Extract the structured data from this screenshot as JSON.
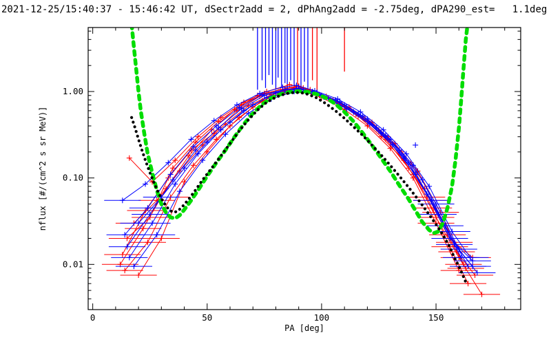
{
  "title": "2021-12-25/15:40:37 - 15:46:42 UT, dSectr2add = 2, dPhAng2add = -2.75deg, dPA290_est=   1.1deg",
  "chart_data": {
    "type": "line",
    "xlabel": "PA [deg]",
    "ylabel": "nflux [#/(cm^2 s sr MeV)]",
    "xlim": [
      -2,
      187
    ],
    "ylim": [
      0.003,
      5.5
    ],
    "ylog": true,
    "grid": false,
    "x_ticks": [
      0,
      50,
      100,
      150
    ],
    "x_tick_labels": [
      "0",
      "50",
      "100",
      "150"
    ],
    "y_ticks": [
      1.0,
      0.1,
      0.01
    ],
    "y_tick_labels": [
      "1.00",
      "0.10",
      "0.01"
    ],
    "colors": {
      "red": "#ff0000",
      "blue": "#0000ff",
      "green": "#00dd00",
      "black": "#000000",
      "frame": "#000000",
      "background": "#ffffff"
    },
    "fit_curves": [
      {
        "name": "model-fit-green-dashed",
        "color": "green",
        "style": "dashed",
        "pa": [
          17,
          18,
          19,
          20,
          21,
          22.5,
          24,
          26,
          28,
          30,
          32,
          34,
          36,
          38,
          40,
          43,
          46,
          50,
          54,
          58,
          62,
          66,
          70,
          74,
          78,
          82,
          86,
          90,
          94,
          98,
          102,
          106,
          110,
          114,
          118,
          122,
          126,
          130,
          134,
          138,
          141,
          144,
          147,
          149,
          151,
          153,
          155,
          157,
          158.5,
          160,
          161,
          162,
          163,
          163.8
        ],
        "flux": [
          6,
          3.2,
          1.8,
          1.0,
          0.6,
          0.33,
          0.19,
          0.115,
          0.072,
          0.05,
          0.04,
          0.035,
          0.034,
          0.037,
          0.043,
          0.055,
          0.072,
          0.105,
          0.15,
          0.21,
          0.3,
          0.42,
          0.56,
          0.71,
          0.84,
          0.93,
          0.99,
          1.01,
          0.99,
          0.93,
          0.84,
          0.72,
          0.58,
          0.45,
          0.33,
          0.24,
          0.17,
          0.12,
          0.082,
          0.057,
          0.042,
          0.031,
          0.025,
          0.023,
          0.024,
          0.03,
          0.045,
          0.08,
          0.16,
          0.38,
          0.8,
          1.8,
          4,
          6
        ]
      },
      {
        "name": "average-black-dotted",
        "color": "black",
        "style": "dotted",
        "pa": [
          17,
          18.5,
          20,
          21.5,
          23,
          25,
          27,
          29,
          31,
          33,
          35,
          37,
          39,
          42,
          45,
          48,
          52,
          56,
          60,
          64,
          68,
          72,
          76,
          80,
          84,
          88,
          91,
          94,
          98,
          102,
          106,
          110,
          114,
          118,
          122,
          126,
          130,
          134,
          138,
          142,
          146,
          150,
          153,
          156,
          158,
          160,
          162,
          163.5
        ],
        "flux": [
          0.5,
          0.38,
          0.28,
          0.21,
          0.16,
          0.115,
          0.085,
          0.065,
          0.052,
          0.044,
          0.04,
          0.041,
          0.046,
          0.057,
          0.073,
          0.095,
          0.13,
          0.18,
          0.25,
          0.35,
          0.47,
          0.61,
          0.75,
          0.86,
          0.94,
          0.975,
          0.97,
          0.93,
          0.84,
          0.72,
          0.6,
          0.49,
          0.39,
          0.31,
          0.24,
          0.185,
          0.14,
          0.105,
          0.078,
          0.057,
          0.041,
          0.029,
          0.022,
          0.016,
          0.012,
          0.0095,
          0.0072,
          0.0058
        ]
      }
    ],
    "series": [
      {
        "name": "red-1",
        "color": "red",
        "pa": [
          13,
          23,
          33,
          43,
          53,
          63,
          73,
          83,
          91,
          99,
          109,
          119,
          129,
          139,
          149,
          159,
          167
        ],
        "flux": [
          0.013,
          0.042,
          0.1,
          0.21,
          0.33,
          0.6,
          0.88,
          1.02,
          1.08,
          0.92,
          0.7,
          0.48,
          0.3,
          0.15,
          0.045,
          0.014,
          0.0075
        ]
      },
      {
        "name": "red-2",
        "color": "red",
        "pa": [
          15,
          25,
          35,
          45,
          55,
          65,
          75,
          85,
          90,
          95,
          105,
          115,
          125,
          135,
          145,
          155,
          163
        ],
        "flux": [
          0.02,
          0.035,
          0.13,
          0.26,
          0.45,
          0.7,
          0.95,
          1.1,
          1.15,
          1.05,
          0.8,
          0.55,
          0.35,
          0.2,
          0.075,
          0.022,
          0.009
        ]
      },
      {
        "name": "red-3",
        "color": "red",
        "pa": [
          14,
          24,
          34,
          44,
          54,
          64,
          74,
          84,
          92,
          100,
          110,
          120,
          130,
          140,
          150,
          160
        ],
        "flux": [
          0.0085,
          0.018,
          0.06,
          0.14,
          0.28,
          0.5,
          0.78,
          0.98,
          1.0,
          0.85,
          0.62,
          0.4,
          0.22,
          0.1,
          0.03,
          0.0085
        ]
      },
      {
        "name": "red-4",
        "color": "red",
        "pa": [
          16,
          26,
          36,
          46,
          56,
          66,
          76,
          86,
          92,
          98,
          108,
          118,
          128,
          138,
          148,
          158,
          166
        ],
        "flux": [
          0.17,
          0.09,
          0.16,
          0.3,
          0.5,
          0.75,
          1.0,
          1.2,
          1.1,
          0.95,
          0.72,
          0.5,
          0.28,
          0.13,
          0.055,
          0.018,
          0.012
        ]
      },
      {
        "name": "red-5",
        "color": "red",
        "pa": [
          12,
          22,
          32,
          42,
          52,
          62,
          72,
          82,
          88,
          96,
          106,
          116,
          126,
          136,
          146,
          156,
          164
        ],
        "flux": [
          0.01,
          0.026,
          0.075,
          0.18,
          0.36,
          0.62,
          0.9,
          1.05,
          1.12,
          0.98,
          0.78,
          0.52,
          0.3,
          0.16,
          0.06,
          0.016,
          0.006
        ]
      },
      {
        "name": "red-6",
        "color": "red",
        "pa": [
          18,
          28,
          38,
          48,
          58,
          68,
          78,
          88,
          94,
          102,
          112,
          122,
          132,
          142,
          152,
          162
        ],
        "flux": [
          0.03,
          0.055,
          0.12,
          0.24,
          0.42,
          0.68,
          0.92,
          1.08,
          1.02,
          0.88,
          0.66,
          0.44,
          0.25,
          0.12,
          0.04,
          0.01
        ]
      },
      {
        "name": "red-7",
        "color": "red",
        "pa": [
          20,
          30,
          40,
          50,
          60,
          70,
          80,
          90,
          100,
          110,
          120,
          130,
          140,
          150,
          160,
          170
        ],
        "flux": [
          0.0075,
          0.02,
          0.09,
          0.2,
          0.4,
          0.66,
          0.95,
          1.15,
          0.9,
          0.68,
          0.45,
          0.26,
          0.11,
          0.035,
          0.012,
          0.0045
        ]
      },
      {
        "name": "blue-1",
        "color": "blue",
        "pa": [
          14,
          24,
          34,
          44,
          54,
          64,
          74,
          84,
          90,
          96,
          106,
          116,
          126,
          136,
          146,
          156,
          166
        ],
        "flux": [
          0.022,
          0.045,
          0.11,
          0.23,
          0.4,
          0.65,
          0.92,
          1.05,
          1.1,
          1.0,
          0.8,
          0.55,
          0.33,
          0.17,
          0.065,
          0.02,
          0.011
        ]
      },
      {
        "name": "blue-2",
        "color": "blue",
        "pa": [
          16,
          26,
          36,
          46,
          56,
          66,
          76,
          86,
          92,
          100,
          110,
          120,
          130,
          140,
          150,
          160,
          168
        ],
        "flux": [
          0.012,
          0.03,
          0.085,
          0.19,
          0.36,
          0.6,
          0.85,
          1.0,
          1.05,
          0.9,
          0.7,
          0.48,
          0.28,
          0.14,
          0.05,
          0.015,
          0.008
        ]
      },
      {
        "name": "blue-3",
        "color": "blue",
        "pa": [
          13,
          23,
          33,
          43,
          53,
          63,
          73,
          83,
          89,
          97,
          107,
          117,
          127,
          137,
          147,
          157,
          165
        ],
        "flux": [
          0.055,
          0.085,
          0.15,
          0.28,
          0.46,
          0.7,
          0.95,
          1.12,
          1.18,
          1.02,
          0.82,
          0.58,
          0.36,
          0.19,
          0.08,
          0.024,
          0.012
        ]
      },
      {
        "name": "blue-4",
        "color": "blue",
        "pa": [
          18,
          28,
          38,
          48,
          58,
          68,
          78,
          88,
          96,
          104,
          114,
          124,
          134,
          144,
          154,
          164
        ],
        "flux": [
          0.0095,
          0.022,
          0.07,
          0.16,
          0.32,
          0.56,
          0.82,
          1.0,
          0.95,
          0.8,
          0.58,
          0.38,
          0.21,
          0.095,
          0.028,
          0.0095
        ]
      },
      {
        "name": "blue-5",
        "color": "blue",
        "pa": [
          20,
          30,
          40,
          50,
          60,
          70,
          80,
          90,
          98,
          108,
          118,
          128,
          138,
          148,
          158,
          166
        ],
        "flux": [
          0.03,
          0.06,
          0.13,
          0.26,
          0.44,
          0.7,
          0.96,
          1.08,
          0.98,
          0.76,
          0.52,
          0.31,
          0.15,
          0.055,
          0.017,
          0.0095
        ]
      },
      {
        "name": "blue-6",
        "color": "blue",
        "pa": [
          15,
          25,
          35,
          45,
          55,
          65,
          75,
          85,
          93,
          101,
          111,
          121,
          131,
          141,
          151,
          161
        ],
        "flux": [
          0.016,
          0.038,
          0.095,
          0.21,
          0.38,
          0.63,
          0.9,
          1.06,
          1.0,
          0.86,
          0.63,
          0.42,
          0.24,
          0.11,
          0.038,
          0.012
        ]
      }
    ],
    "offscale_lines": [
      {
        "pa": 72,
        "color": "blue",
        "flux_end": 1.05
      },
      {
        "pa": 74,
        "color": "blue",
        "flux_end": 1.35
      },
      {
        "pa": 75.5,
        "color": "blue",
        "flux_end": 1.1
      },
      {
        "pa": 77,
        "color": "blue",
        "flux_end": 1.55
      },
      {
        "pa": 78.5,
        "color": "blue",
        "flux_end": 1.2
      },
      {
        "pa": 80,
        "color": "blue",
        "flux_end": 1.05
      },
      {
        "pa": 81,
        "color": "blue",
        "flux_end": 1.45
      },
      {
        "pa": 82.5,
        "color": "blue",
        "flux_end": 1.1
      },
      {
        "pa": 84,
        "color": "blue",
        "flux_end": 1.25
      },
      {
        "pa": 85,
        "color": "blue",
        "flux_end": 1.05
      },
      {
        "pa": 86.5,
        "color": "blue",
        "flux_end": 1.35
      },
      {
        "pa": 88,
        "color": "blue",
        "flux_end": 1.15
      },
      {
        "pa": 89.5,
        "color": "red",
        "flux_end": 1.2
      },
      {
        "pa": 91,
        "color": "blue",
        "flux_end": 1.1
      },
      {
        "pa": 92.5,
        "color": "blue",
        "flux_end": 1.3
      },
      {
        "pa": 94,
        "color": "blue",
        "flux_end": 1.1
      },
      {
        "pa": 96,
        "color": "red",
        "flux_end": 1.35
      },
      {
        "pa": 98,
        "color": "red",
        "flux_end": 0.95
      },
      {
        "pa": 110,
        "color": "red",
        "flux_end": 1.7
      }
    ],
    "outliers": [
      {
        "pa": 141,
        "flux": 0.24,
        "color": "blue"
      }
    ]
  }
}
